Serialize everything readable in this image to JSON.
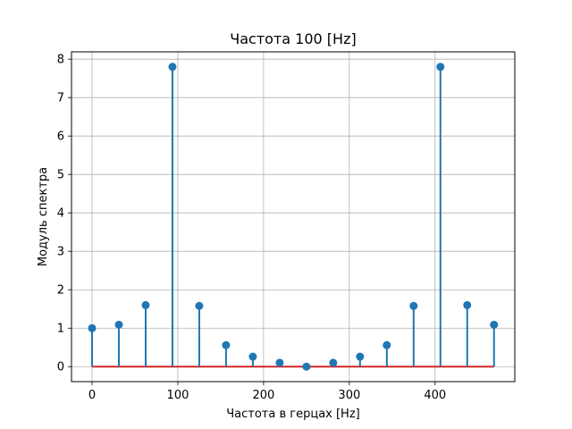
{
  "chart_data": {
    "type": "stem",
    "title": "Частота 100 [Hz]",
    "xlabel": "Частота в герцах [Hz]",
    "ylabel": "Модуль спектра",
    "xlim": [
      -24,
      493
    ],
    "ylim": [
      -0.39,
      8.19
    ],
    "xticks": [
      0,
      100,
      200,
      300,
      400
    ],
    "yticks": [
      0,
      1,
      2,
      3,
      4,
      5,
      6,
      7,
      8
    ],
    "grid": true,
    "baseline": 0,
    "baseline_color": "#d62728",
    "stem_color": "#1f77b4",
    "x": [
      0,
      31.25,
      62.5,
      93.75,
      125,
      156.25,
      187.5,
      218.75,
      250,
      281.25,
      312.5,
      343.75,
      375,
      406.25,
      437.5,
      468.75
    ],
    "y": [
      1.0,
      1.09,
      1.6,
      7.8,
      1.58,
      0.56,
      0.26,
      0.1,
      0.0,
      0.1,
      0.26,
      0.56,
      1.58,
      7.8,
      1.6,
      1.09
    ]
  }
}
